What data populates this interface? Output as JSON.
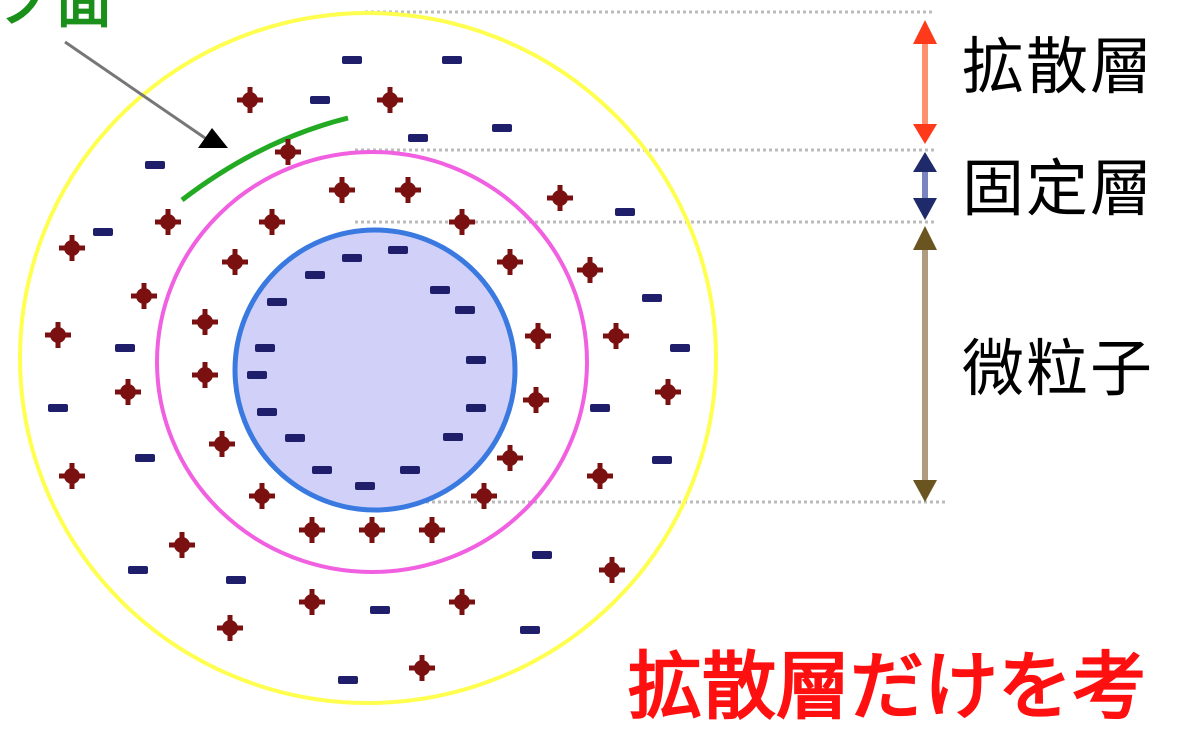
{
  "labels": {
    "diffuse_layer": "拡散層",
    "fixed_layer": "固定層",
    "particle": "微粒子"
  },
  "caption": "拡散層だけを考",
  "cropped_top_text": "ノ面",
  "colors": {
    "particle_fill": "#d0d0f8",
    "particle_edge": "#3a7ae0",
    "fixed_ring": "#f060e0",
    "diffuse_ring": "#ffff50",
    "slip_arc": "#22aa22",
    "plus_charge": "#7a1010",
    "minus_charge": "#1e1e6a",
    "diffuse_arrow": "#ff7050",
    "fixed_arrow": "#1e2a6a",
    "particle_arrow": "#b09a80",
    "caption": "#ff1010"
  },
  "icons": {
    "plus": "plus-charge-icon",
    "minus": "minus-charge-icon"
  }
}
